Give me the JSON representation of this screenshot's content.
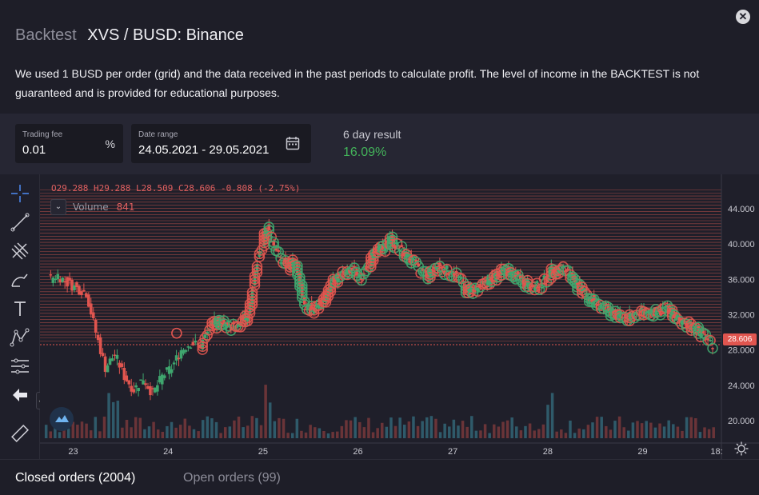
{
  "header": {
    "title_prefix": "Backtest",
    "title": "XVS / BUSD: Binance",
    "description": "We used 1 BUSD per order (grid) and the data received in the past periods to calculate profit. The level of income in the BACKTEST is not guaranteed and is provided for educational purposes.",
    "close_icon": "close-icon"
  },
  "params": {
    "trading_fee": {
      "label": "Trading fee",
      "value": "0.01",
      "unit": "%"
    },
    "date_range": {
      "label": "Date range",
      "value": "24.05.2021 - 29.05.2021",
      "icon": "calendar-icon"
    },
    "result": {
      "label": "6 day result",
      "value": "16.09%",
      "color": "#43b35a"
    }
  },
  "chart": {
    "ohlc": {
      "o_label": "O",
      "o": "29.288",
      "h_label": "H",
      "h": "29.288",
      "l_label": "L",
      "l": "28.509",
      "c_label": "C",
      "c": "28.606",
      "change": "-0.808 (-2.75%)"
    },
    "volume": {
      "label": "Volume",
      "value": "841"
    },
    "last_price": "28.606",
    "colors": {
      "up": "#3fa66e",
      "down": "#e0554f",
      "grid_line": "#d9594f",
      "volume_up": "#2f5a6a",
      "volume_down": "#6a3438"
    },
    "tools": [
      "crosshair-icon",
      "trend-line-icon",
      "pitchfork-icon",
      "brush-icon",
      "text-icon",
      "pattern-icon",
      "measure-icon",
      "back-arrow-icon",
      "ruler-icon"
    ]
  },
  "chart_data": {
    "type": "candlestick",
    "y_ticks": [
      "44.000",
      "40.000",
      "36.000",
      "32.000",
      "28.000",
      "24.000",
      "20.000"
    ],
    "x_ticks": [
      "23",
      "24",
      "25",
      "26",
      "27",
      "28",
      "29",
      "18:"
    ],
    "ylim": [
      18,
      47
    ],
    "y_tick_values": [
      44,
      40,
      36,
      32,
      28,
      24,
      20
    ],
    "x_tick_positions": [
      23,
      24,
      25,
      26,
      27,
      28,
      29,
      29.78
    ],
    "close_series": [
      [
        22.75,
        36
      ],
      [
        22.85,
        36.5
      ],
      [
        22.95,
        35.6
      ],
      [
        23.05,
        35
      ],
      [
        23.15,
        34.5
      ],
      [
        23.25,
        30
      ],
      [
        23.35,
        26
      ],
      [
        23.45,
        27.5
      ],
      [
        23.55,
        25
      ],
      [
        23.65,
        23.5
      ],
      [
        23.75,
        24.8
      ],
      [
        23.85,
        23
      ],
      [
        23.95,
        25
      ],
      [
        24.05,
        26
      ],
      [
        24.15,
        28
      ],
      [
        24.25,
        28.8
      ],
      [
        24.35,
        28.5
      ],
      [
        24.45,
        30.5
      ],
      [
        24.55,
        31.5
      ],
      [
        24.65,
        30.5
      ],
      [
        24.75,
        31.2
      ],
      [
        24.85,
        32
      ],
      [
        24.95,
        38
      ],
      [
        25.05,
        42
      ],
      [
        25.15,
        39
      ],
      [
        25.25,
        37.5
      ],
      [
        25.35,
        38
      ],
      [
        25.45,
        33
      ],
      [
        25.55,
        32.5
      ],
      [
        25.65,
        34
      ],
      [
        25.75,
        36
      ],
      [
        25.85,
        36.5
      ],
      [
        25.95,
        37
      ],
      [
        26.05,
        36.5
      ],
      [
        26.15,
        38.5
      ],
      [
        26.25,
        39.5
      ],
      [
        26.35,
        40.5
      ],
      [
        26.45,
        39.5
      ],
      [
        26.55,
        38.5
      ],
      [
        26.65,
        37
      ],
      [
        26.75,
        36.5
      ],
      [
        26.85,
        37.5
      ],
      [
        26.95,
        37
      ],
      [
        27.05,
        36.5
      ],
      [
        27.15,
        35
      ],
      [
        27.25,
        34.8
      ],
      [
        27.35,
        35.5
      ],
      [
        27.45,
        36.5
      ],
      [
        27.55,
        37
      ],
      [
        27.65,
        36.8
      ],
      [
        27.75,
        36
      ],
      [
        27.85,
        35
      ],
      [
        27.95,
        35.5
      ],
      [
        28.05,
        37
      ],
      [
        28.15,
        37.5
      ],
      [
        28.25,
        36.5
      ],
      [
        28.35,
        35
      ],
      [
        28.45,
        34
      ],
      [
        28.55,
        33
      ],
      [
        28.65,
        32.5
      ],
      [
        28.75,
        32
      ],
      [
        28.85,
        31.5
      ],
      [
        28.95,
        32.3
      ],
      [
        29.05,
        32.5
      ],
      [
        29.15,
        32.2
      ],
      [
        29.25,
        32.8
      ],
      [
        29.35,
        32
      ],
      [
        29.45,
        31
      ],
      [
        29.55,
        30.5
      ],
      [
        29.65,
        29.5
      ],
      [
        29.75,
        28.6
      ]
    ],
    "x_range": [
      22.65,
      29.83
    ],
    "grid_lines_from": 29,
    "grid_lines_to": 46.5,
    "grid_lines_step": 0.35
  },
  "orders_tabs": {
    "closed": "Closed orders (2004)",
    "open": "Open orders (99)"
  }
}
